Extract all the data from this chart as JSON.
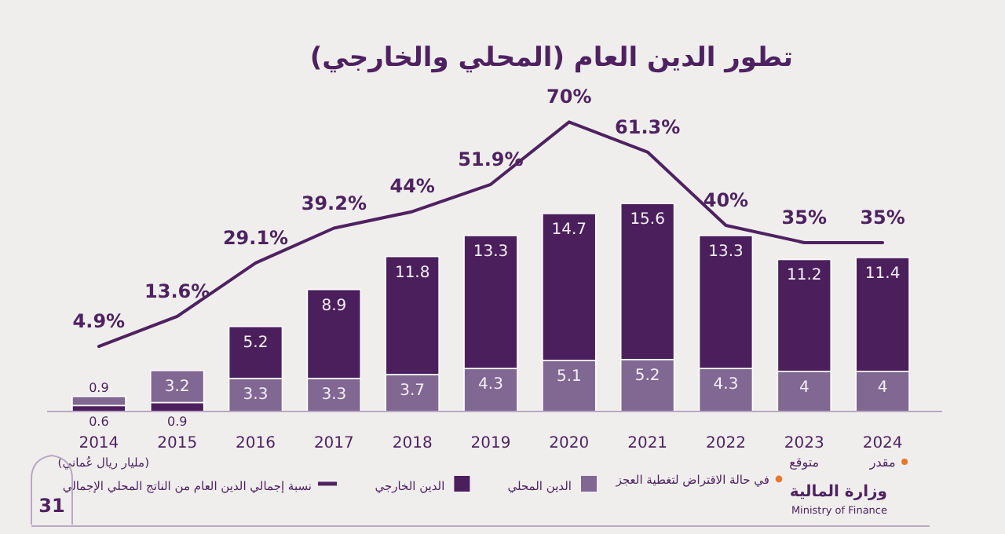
{
  "chart_data": {
    "type": "bar",
    "title": "تطور الدين العام (المحلي والخارجي)",
    "categories": [
      "2014",
      "2015",
      "2016",
      "2017",
      "2018",
      "2019",
      "2020",
      "2021",
      "2022",
      "2023",
      "2024"
    ],
    "series": [
      {
        "color": "#4b1f5c",
        "values": [
          0.6,
          0.9,
          null,
          null,
          null,
          null,
          null,
          null,
          null,
          null,
          null
        ]
      },
      {
        "name": "الدين المحلي",
        "color": "#806892",
        "values": [
          0.9,
          3.2,
          3.3,
          3.3,
          3.7,
          4.3,
          5.1,
          5.2,
          4.3,
          4,
          4
        ]
      },
      {
        "name": "الدين الخارجي",
        "color": "#4b1f5c",
        "values": [
          null,
          null,
          5.2,
          8.9,
          11.8,
          13.3,
          14.7,
          15.6,
          13.3,
          11.2,
          11.4
        ]
      },
      {
        "type": "line",
        "name": "نسبة إجمالي الدين العام من الناتج المحلي الإجمالي",
        "color": "#4e2260",
        "axis": "y2",
        "values": [
          4.9,
          13.6,
          29.1,
          39.2,
          44,
          51.9,
          70,
          61.3,
          40,
          35,
          35
        ],
        "value_labels": [
          "4.9%",
          "13.6%",
          "29.1%",
          "39.2%",
          "44%",
          "51.9%",
          "70%",
          "61.3%",
          "40%",
          "35%",
          "35%"
        ]
      }
    ],
    "stacked": true,
    "data_labels": true,
    "tick_labels": "x",
    "legend": "bottom",
    "annotations": [
      "(مليار ريال عُماني)",
      "في حالة الاقتراض لتغطية العجز",
      "31",
      "وزارة المالية",
      "Ministry of Finance",
      "متوقع",
      "مقدر"
    ]
  }
}
